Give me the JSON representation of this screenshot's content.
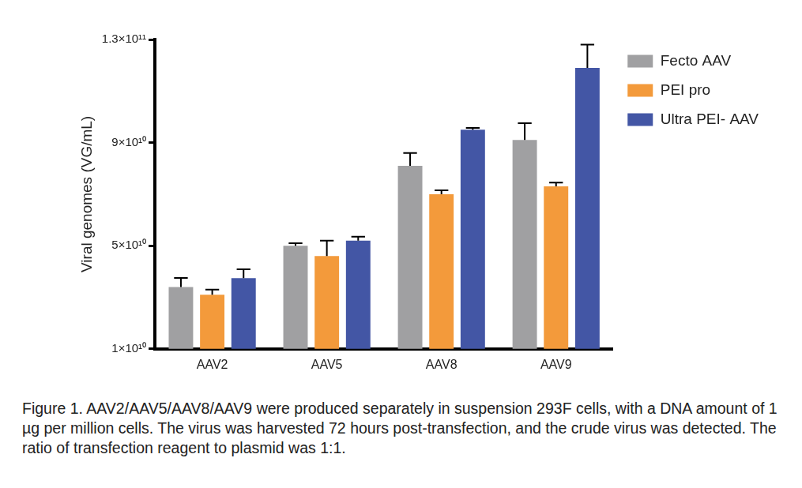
{
  "chart_data": {
    "type": "bar",
    "y_label": "Viral genomes (VG/mL)",
    "caption": "Figure 1. AAV2/AAV5/AAV8/AAV9 were produced separately in suspension 293F cells, with a DNA amount of 1 µg per million cells. The virus was harvested 72 hours post-transfection, and the crude virus was detected. The ratio of transfection reagent to plasmid was 1:1.",
    "categories": [
      "AAV2",
      "AAV5",
      "AAV8",
      "AAV9"
    ],
    "series": [
      {
        "name": "Fecto AAV",
        "color": "#a0a0a2",
        "values": [
          34000000000,
          50000000000,
          81000000000,
          91000000000
        ],
        "errors": [
          3500000000,
          1000000000,
          5000000000,
          6500000000
        ]
      },
      {
        "name": "PEI pro",
        "color": "#f39a3b",
        "values": [
          31000000000,
          46000000000,
          70000000000,
          73000000000
        ],
        "errors": [
          2000000000,
          6000000000,
          1500000000,
          1500000000
        ]
      },
      {
        "name": "Ultra PEI- AAV",
        "color": "#4356a5",
        "values": [
          37400000000,
          52000000000,
          95000000000,
          119000000000
        ],
        "errors": [
          3500000000,
          1500000000,
          700000000,
          9000000000
        ]
      }
    ],
    "ylim": [
      10000000000,
      130000000000
    ],
    "yticks": [
      {
        "value": 10000000000,
        "label": "1×10¹⁰"
      },
      {
        "value": 50000000000,
        "label": "5×10¹⁰"
      },
      {
        "value": 90000000000,
        "label": "9×10¹⁰"
      },
      {
        "value": 130000000000,
        "label": "1.3×10¹¹"
      }
    ],
    "grid": false,
    "legend": "top-right"
  }
}
